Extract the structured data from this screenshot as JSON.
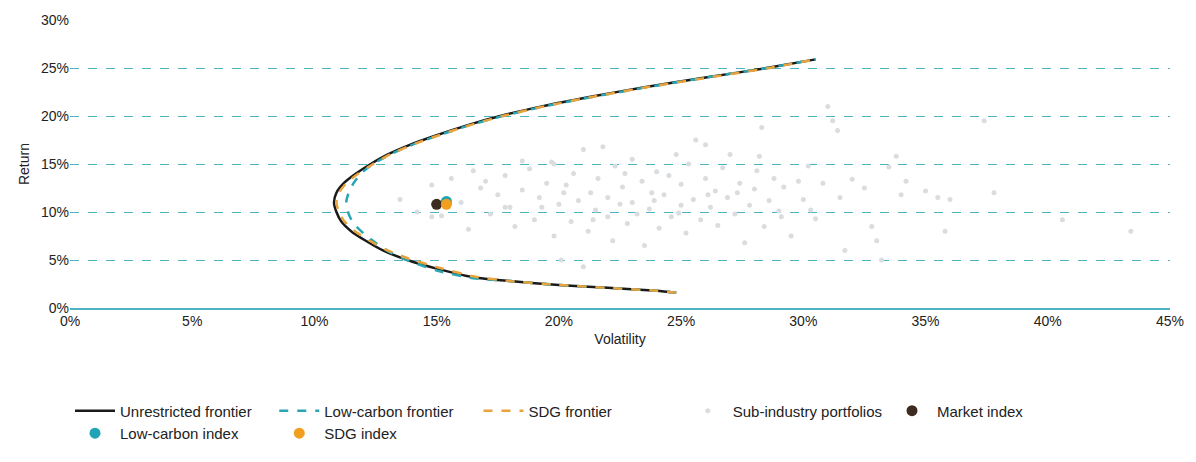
{
  "chart_data": {
    "type": "line",
    "x_label": "Volatility",
    "y_label": "Return",
    "xlim": [
      0,
      45
    ],
    "ylim": [
      0,
      30
    ],
    "xticks": [
      {
        "value": 0,
        "label": "0%"
      },
      {
        "value": 5,
        "label": "5%"
      },
      {
        "value": 10,
        "label": "10%"
      },
      {
        "value": 15,
        "label": "15%"
      },
      {
        "value": 20,
        "label": "20%"
      },
      {
        "value": 25,
        "label": "25%"
      },
      {
        "value": 30,
        "label": "30%"
      },
      {
        "value": 35,
        "label": "35%"
      },
      {
        "value": 40,
        "label": "40%"
      },
      {
        "value": 45,
        "label": "45%"
      }
    ],
    "yticks": [
      {
        "value": 0,
        "label": "0%"
      },
      {
        "value": 5,
        "label": "5%"
      },
      {
        "value": 10,
        "label": "10%"
      },
      {
        "value": 15,
        "label": "15%"
      },
      {
        "value": 20,
        "label": "20%"
      },
      {
        "value": 25,
        "label": "25%"
      },
      {
        "value": 30,
        "label": "30%"
      }
    ],
    "grid": true,
    "legend": "bottom",
    "series": [
      {
        "name": "Unrestricted frontier",
        "type": "line",
        "color": "#1a1a1a",
        "line_style": "solid",
        "x": [
          24.8,
          24.0,
          22.0,
          20.0,
          18.0,
          16.5,
          15.0,
          13.8,
          12.8,
          12.1,
          11.5,
          11.1,
          10.9,
          10.8,
          10.9,
          11.2,
          11.7,
          12.3,
          13.0,
          13.9,
          15.0,
          16.2,
          17.6,
          19.3,
          21.3,
          23.5,
          26.0,
          28.5,
          30.5
        ],
        "values": [
          1.6,
          1.8,
          2.1,
          2.4,
          2.8,
          3.2,
          4.1,
          5.0,
          6.0,
          7.0,
          8.0,
          9.0,
          10.0,
          11.0,
          12.0,
          13.0,
          14.0,
          15.0,
          16.0,
          17.0,
          18.0,
          19.0,
          20.0,
          21.0,
          22.0,
          23.0,
          24.0,
          25.0,
          25.9
        ]
      },
      {
        "name": "Low-carbon frontier",
        "type": "line",
        "color": "#2aa6b3",
        "line_style": "dash",
        "x": [
          24.8,
          24.0,
          22.0,
          20.0,
          18.0,
          16.5,
          15.0,
          14.0,
          13.1,
          12.5,
          12.0,
          11.6,
          11.4,
          11.3,
          11.4,
          11.6,
          11.9,
          12.4,
          13.1,
          14.0,
          15.1,
          16.3,
          17.7,
          19.4,
          21.4,
          23.6,
          26.0,
          28.5,
          30.5
        ],
        "values": [
          1.6,
          1.8,
          2.1,
          2.4,
          2.8,
          3.1,
          3.9,
          4.8,
          5.8,
          6.8,
          7.8,
          8.8,
          9.8,
          11.0,
          12.0,
          13.0,
          14.0,
          15.0,
          16.0,
          17.0,
          18.0,
          19.0,
          20.0,
          21.0,
          22.0,
          23.0,
          24.0,
          25.0,
          25.9
        ]
      },
      {
        "name": "SDG frontier",
        "type": "line",
        "color": "#e8a33d",
        "line_style": "dash",
        "x": [
          24.8,
          24.0,
          22.0,
          20.0,
          18.0,
          16.5,
          15.1,
          13.9,
          12.9,
          12.2,
          11.6,
          11.2,
          11.0,
          10.9,
          11.0,
          11.3,
          11.8,
          12.4,
          13.1,
          14.0,
          15.1,
          16.3,
          17.7,
          19.4,
          21.4,
          23.6,
          26.1,
          28.6,
          30.5
        ],
        "values": [
          1.6,
          1.8,
          2.1,
          2.4,
          2.8,
          3.3,
          4.2,
          5.1,
          6.1,
          7.1,
          8.1,
          9.1,
          10.0,
          11.0,
          12.0,
          13.0,
          14.0,
          15.0,
          16.0,
          17.0,
          18.0,
          19.0,
          20.0,
          21.0,
          22.0,
          23.0,
          24.0,
          25.0,
          25.9
        ]
      },
      {
        "name": "Sub-industry portfolios",
        "type": "scatter",
        "color": "#d9dde0",
        "marker": "circle",
        "x": [
          13.5,
          14.2,
          14.8,
          15.2,
          15.6,
          16.0,
          16.3,
          16.8,
          17.0,
          17.2,
          17.5,
          17.8,
          18.0,
          18.2,
          18.5,
          18.8,
          19.0,
          19.2,
          19.5,
          19.7,
          19.8,
          20.0,
          20.1,
          20.3,
          20.5,
          20.6,
          20.8,
          21.0,
          21.0,
          21.2,
          21.3,
          21.5,
          21.6,
          21.8,
          22.0,
          22.0,
          22.2,
          22.3,
          22.5,
          22.6,
          22.8,
          23.0,
          23.0,
          23.2,
          23.4,
          23.5,
          23.7,
          23.8,
          24.0,
          24.1,
          24.3,
          24.5,
          24.6,
          24.8,
          25.0,
          25.0,
          25.2,
          25.3,
          25.5,
          25.6,
          25.8,
          26.0,
          26.0,
          26.2,
          26.4,
          26.5,
          26.7,
          26.9,
          27.0,
          27.2,
          27.4,
          27.6,
          27.8,
          28.0,
          28.1,
          28.2,
          28.3,
          28.4,
          28.6,
          28.8,
          29.0,
          29.2,
          29.5,
          29.8,
          30.0,
          30.2,
          30.5,
          30.8,
          31.0,
          31.2,
          31.4,
          31.5,
          31.7,
          32.0,
          32.5,
          32.8,
          33.0,
          33.2,
          33.5,
          33.8,
          34.0,
          34.2,
          35.0,
          35.5,
          35.8,
          36.0,
          37.4,
          37.8,
          40.6,
          43.4,
          14.8,
          16.5,
          17.8,
          19.3,
          20.2,
          21.4,
          22.7,
          23.9,
          24.9,
          26.1,
          27.3,
          29.1,
          30.3,
          19.8,
          18.5
        ],
        "values": [
          11.3,
          10.0,
          12.8,
          9.6,
          13.5,
          11.0,
          8.2,
          12.5,
          13.2,
          9.8,
          11.8,
          13.8,
          10.5,
          8.5,
          12.3,
          14.5,
          9.2,
          11.5,
          13.0,
          15.2,
          7.5,
          10.8,
          5.0,
          12.8,
          9.0,
          14.0,
          11.2,
          16.5,
          4.3,
          8.0,
          12.0,
          10.2,
          13.5,
          16.8,
          9.5,
          11.5,
          7.0,
          14.8,
          10.8,
          12.6,
          8.8,
          15.5,
          11.0,
          9.8,
          13.2,
          6.5,
          10.3,
          12.0,
          14.2,
          8.3,
          11.8,
          13.8,
          9.5,
          16.0,
          10.7,
          12.9,
          7.8,
          15.0,
          11.3,
          17.5,
          9.2,
          13.5,
          17.0,
          10.5,
          12.2,
          8.6,
          14.6,
          11.5,
          16.0,
          9.8,
          13.0,
          6.8,
          10.7,
          12.4,
          14.3,
          15.8,
          18.8,
          8.5,
          11.2,
          13.5,
          10.1,
          12.6,
          7.5,
          13.2,
          11.3,
          14.8,
          9.3,
          13.0,
          21.0,
          19.5,
          18.5,
          11.5,
          6.0,
          13.4,
          12.5,
          8.5,
          7.0,
          5.0,
          14.7,
          15.8,
          11.8,
          13.2,
          12.2,
          11.5,
          8.0,
          11.3,
          19.5,
          12.0,
          9.2,
          8.0,
          9.5,
          14.3,
          10.5,
          10.5,
          12.0,
          9.2,
          14.0,
          11.2,
          9.9,
          11.8,
          12.0,
          9.5,
          10.2,
          15.0,
          15.3
        ]
      },
      {
        "name": "Market index",
        "type": "scatter",
        "color": "#3d2b1f",
        "marker": "circle",
        "x": [
          15.0
        ],
        "values": [
          10.8
        ]
      },
      {
        "name": "Low-carbon index",
        "type": "scatter",
        "color": "#1fa3b5",
        "marker": "circle",
        "x": [
          15.4
        ],
        "values": [
          11.1
        ]
      },
      {
        "name": "SDG index",
        "type": "scatter",
        "color": "#f0a01e",
        "marker": "circle",
        "x": [
          15.4
        ],
        "values": [
          10.8
        ]
      }
    ]
  }
}
